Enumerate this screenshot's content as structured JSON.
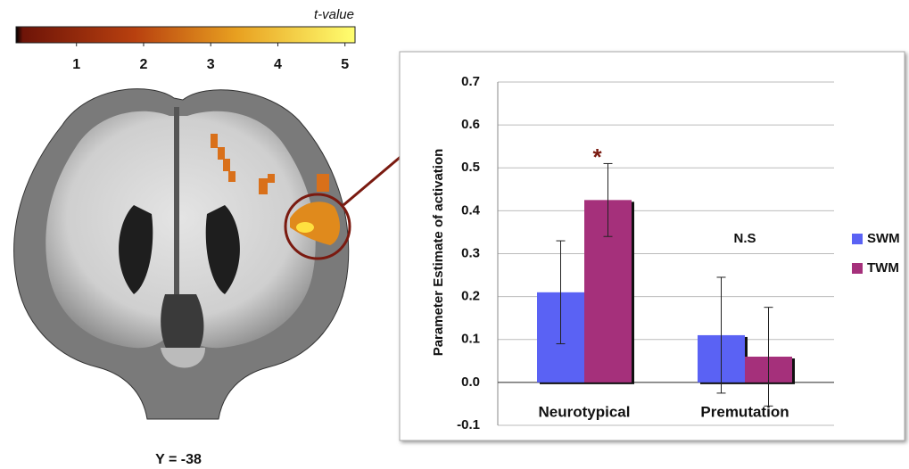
{
  "colorbar": {
    "label": "t-value",
    "ticks": [
      1,
      2,
      3,
      4,
      5
    ],
    "clim": [
      0.1,
      5.15
    ]
  },
  "brain": {
    "label": "Y = -38"
  },
  "chart_data": {
    "type": "bar",
    "ylabel": "Parameter Estimate of activation",
    "categories": [
      "Neurotypical",
      "Premutation"
    ],
    "series": [
      {
        "name": "SWM",
        "color": "#5a62f4",
        "values": [
          0.21,
          0.11
        ],
        "errors": [
          0.12,
          0.135
        ]
      },
      {
        "name": "TWM",
        "color": "#a5307b",
        "values": [
          0.425,
          0.06
        ],
        "errors": [
          0.085,
          0.115
        ]
      }
    ],
    "annotations": [
      "*",
      "N.S"
    ],
    "ylim": [
      -0.1,
      0.7
    ],
    "yticks": [
      -0.1,
      {
        "value": 0,
        "label": "0.0"
      },
      0.1,
      0.2,
      0.3,
      0.4,
      0.5,
      0.6,
      0.7
    ],
    "grid": true,
    "legend": "right"
  }
}
